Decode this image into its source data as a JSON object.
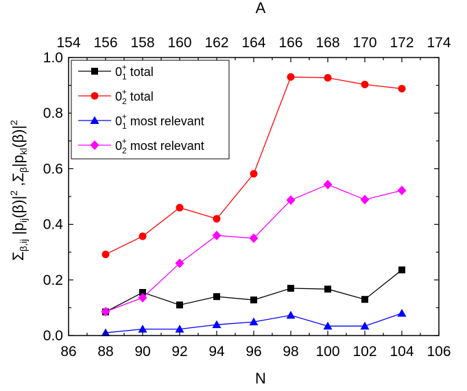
{
  "chart_data": {
    "type": "line",
    "xlabel": "N",
    "x2label": "A",
    "xlim": [
      86,
      106
    ],
    "x2lim": [
      154,
      174
    ],
    "ylim": [
      0.0,
      1.0
    ],
    "xticks": [
      86,
      88,
      90,
      92,
      94,
      96,
      98,
      100,
      102,
      104,
      106
    ],
    "x2ticks": [
      154,
      156,
      158,
      160,
      162,
      164,
      166,
      168,
      170,
      172,
      174
    ],
    "yticks": [
      "0.0",
      "0.2",
      "0.4",
      "0.6",
      "0.8",
      "1.0"
    ],
    "legend_position": "top-left",
    "grid": false,
    "x": [
      88,
      90,
      92,
      94,
      96,
      98,
      100,
      102,
      104
    ],
    "series": [
      {
        "label_base": "0",
        "label_sub": "1",
        "label_sup": "+",
        "label_rest": " total",
        "color": "#000000",
        "marker": "square",
        "values": [
          0.085,
          0.155,
          0.11,
          0.14,
          0.128,
          0.17,
          0.167,
          0.13,
          0.236
        ]
      },
      {
        "label_base": "0",
        "label_sub": "2",
        "label_sup": "+",
        "label_rest": " total",
        "color": "#ff0000",
        "marker": "circle",
        "values": [
          0.292,
          0.357,
          0.46,
          0.42,
          0.582,
          0.93,
          0.927,
          0.903,
          0.888
        ]
      },
      {
        "label_base": "0",
        "label_sub": "1",
        "label_sup": "+",
        "label_rest": " most relevant",
        "color": "#0000ff",
        "marker": "triangle",
        "values": [
          0.01,
          0.023,
          0.023,
          0.039,
          0.049,
          0.073,
          0.034,
          0.034,
          0.08
        ]
      },
      {
        "label_base": "0",
        "label_sub": "2",
        "label_sup": "+",
        "label_rest": " most relevant",
        "color": "#ff00ff",
        "marker": "diamond",
        "values": [
          0.086,
          0.136,
          0.26,
          0.36,
          0.35,
          0.487,
          0.543,
          0.489,
          0.522
        ]
      }
    ]
  }
}
